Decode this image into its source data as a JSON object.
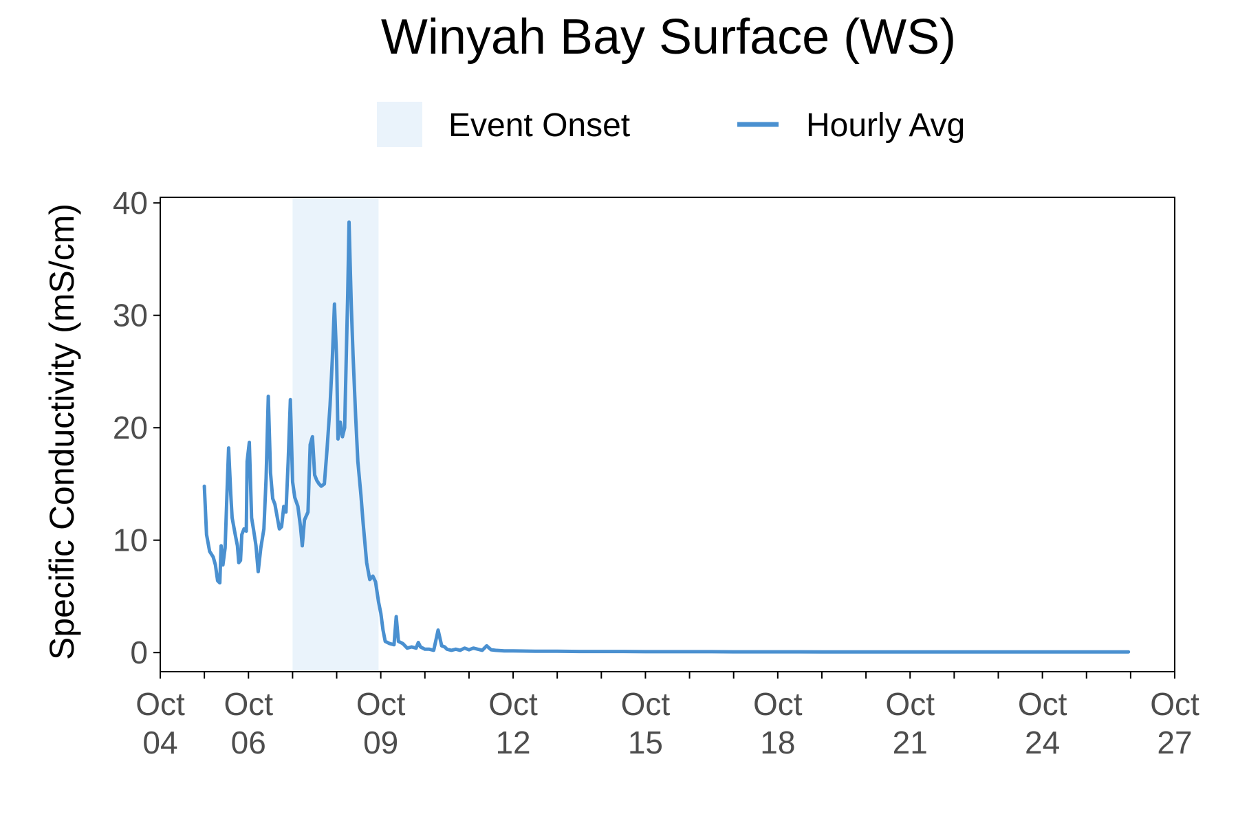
{
  "colors": {
    "line": "#4a90d0",
    "event_fill": "#eaf3fb",
    "axis": "#000000",
    "tick_text": "#4d4d4d"
  },
  "chart_data": {
    "type": "line",
    "title": "Winyah Bay Surface (WS)",
    "xlabel": "",
    "ylabel": "Specific Conductivity (mS/cm)",
    "x_axis": "date (October, day of month)",
    "xlim": [
      "Oct 04",
      "Oct 27"
    ],
    "ylim": [
      -1.7,
      40.5
    ],
    "y_ticks": [
      0,
      10,
      20,
      30,
      40
    ],
    "x_ticks": [
      {
        "day": 4,
        "label": "Oct\n04"
      },
      {
        "day": 6,
        "label": "Oct\n06"
      },
      {
        "day": 9,
        "label": "Oct\n09"
      },
      {
        "day": 12,
        "label": "Oct\n12"
      },
      {
        "day": 15,
        "label": "Oct\n15"
      },
      {
        "day": 18,
        "label": "Oct\n18"
      },
      {
        "day": 21,
        "label": "Oct\n21"
      },
      {
        "day": 24,
        "label": "Oct\n24"
      },
      {
        "day": 27,
        "label": "Oct\n27"
      }
    ],
    "minor_tick_days": [
      5,
      7,
      8,
      10,
      11,
      13,
      14,
      16,
      17,
      19,
      20,
      22,
      23,
      25,
      26
    ],
    "legend": {
      "placement": "top",
      "entries": [
        {
          "label": "Event Onset",
          "kind": "fill"
        },
        {
          "label": "Hourly Avg",
          "kind": "line"
        }
      ]
    },
    "event_onset": {
      "start_day": 7.0,
      "end_day": 8.95
    },
    "series": [
      {
        "name": "Hourly Avg",
        "points": [
          [
            5.0,
            14.8
          ],
          [
            5.05,
            10.5
          ],
          [
            5.12,
            9.0
          ],
          [
            5.2,
            8.5
          ],
          [
            5.25,
            7.8
          ],
          [
            5.3,
            6.4
          ],
          [
            5.35,
            6.2
          ],
          [
            5.38,
            9.5
          ],
          [
            5.42,
            7.8
          ],
          [
            5.47,
            9.3
          ],
          [
            5.52,
            15.0
          ],
          [
            5.55,
            18.2
          ],
          [
            5.6,
            14.0
          ],
          [
            5.63,
            12.0
          ],
          [
            5.7,
            10.5
          ],
          [
            5.75,
            9.5
          ],
          [
            5.78,
            8.0
          ],
          [
            5.82,
            8.2
          ],
          [
            5.85,
            10.5
          ],
          [
            5.9,
            11.0
          ],
          [
            5.95,
            10.8
          ],
          [
            5.97,
            17.0
          ],
          [
            6.02,
            18.7
          ],
          [
            6.07,
            12.0
          ],
          [
            6.12,
            10.8
          ],
          [
            6.17,
            9.5
          ],
          [
            6.22,
            7.2
          ],
          [
            6.28,
            9.3
          ],
          [
            6.35,
            11.0
          ],
          [
            6.4,
            15.5
          ],
          [
            6.45,
            22.8
          ],
          [
            6.5,
            16.0
          ],
          [
            6.55,
            13.7
          ],
          [
            6.6,
            13.2
          ],
          [
            6.7,
            11.0
          ],
          [
            6.75,
            11.2
          ],
          [
            6.8,
            13.0
          ],
          [
            6.85,
            12.5
          ],
          [
            6.9,
            17.0
          ],
          [
            6.95,
            22.5
          ],
          [
            7.0,
            15.2
          ],
          [
            7.05,
            13.8
          ],
          [
            7.12,
            13.0
          ],
          [
            7.18,
            11.2
          ],
          [
            7.22,
            9.5
          ],
          [
            7.27,
            11.8
          ],
          [
            7.35,
            12.5
          ],
          [
            7.4,
            18.5
          ],
          [
            7.45,
            19.2
          ],
          [
            7.5,
            15.8
          ],
          [
            7.55,
            15.3
          ],
          [
            7.6,
            15.0
          ],
          [
            7.65,
            14.8
          ],
          [
            7.72,
            15.0
          ],
          [
            7.78,
            18.0
          ],
          [
            7.85,
            22.0
          ],
          [
            7.9,
            26.0
          ],
          [
            7.95,
            31.0
          ],
          [
            8.0,
            26.0
          ],
          [
            8.03,
            19.0
          ],
          [
            8.08,
            20.5
          ],
          [
            8.13,
            19.2
          ],
          [
            8.18,
            20.0
          ],
          [
            8.25,
            32.0
          ],
          [
            8.28,
            38.3
          ],
          [
            8.33,
            31.0
          ],
          [
            8.37,
            26.5
          ],
          [
            8.43,
            21.0
          ],
          [
            8.48,
            17.0
          ],
          [
            8.55,
            14.0
          ],
          [
            8.6,
            11.5
          ],
          [
            8.68,
            8.0
          ],
          [
            8.75,
            6.5
          ],
          [
            8.82,
            6.8
          ],
          [
            8.88,
            6.3
          ],
          [
            8.95,
            4.5
          ],
          [
            9.0,
            3.5
          ],
          [
            9.05,
            2.0
          ],
          [
            9.1,
            1.0
          ],
          [
            9.2,
            0.8
          ],
          [
            9.3,
            0.7
          ],
          [
            9.35,
            3.2
          ],
          [
            9.4,
            1.0
          ],
          [
            9.5,
            0.8
          ],
          [
            9.6,
            0.4
          ],
          [
            9.7,
            0.5
          ],
          [
            9.8,
            0.4
          ],
          [
            9.85,
            0.9
          ],
          [
            9.9,
            0.5
          ],
          [
            10.0,
            0.3
          ],
          [
            10.1,
            0.3
          ],
          [
            10.2,
            0.2
          ],
          [
            10.3,
            2.0
          ],
          [
            10.38,
            0.6
          ],
          [
            10.45,
            0.5
          ],
          [
            10.5,
            0.3
          ],
          [
            10.6,
            0.2
          ],
          [
            10.7,
            0.3
          ],
          [
            10.8,
            0.2
          ],
          [
            10.9,
            0.4
          ],
          [
            11.0,
            0.25
          ],
          [
            11.1,
            0.4
          ],
          [
            11.2,
            0.3
          ],
          [
            11.3,
            0.2
          ],
          [
            11.4,
            0.6
          ],
          [
            11.5,
            0.25
          ],
          [
            11.6,
            0.2
          ],
          [
            11.8,
            0.15
          ],
          [
            12.0,
            0.15
          ],
          [
            12.5,
            0.12
          ],
          [
            13.0,
            0.12
          ],
          [
            13.5,
            0.1
          ],
          [
            14.0,
            0.1
          ],
          [
            14.5,
            0.1
          ],
          [
            15.0,
            0.08
          ],
          [
            15.5,
            0.08
          ],
          [
            16.0,
            0.08
          ],
          [
            16.5,
            0.08
          ],
          [
            17.0,
            0.07
          ],
          [
            17.5,
            0.07
          ],
          [
            18.0,
            0.07
          ],
          [
            18.5,
            0.07
          ],
          [
            19.0,
            0.06
          ],
          [
            19.5,
            0.06
          ],
          [
            20.0,
            0.06
          ],
          [
            20.5,
            0.06
          ],
          [
            21.0,
            0.06
          ],
          [
            21.5,
            0.06
          ],
          [
            22.0,
            0.06
          ],
          [
            22.5,
            0.06
          ],
          [
            23.0,
            0.06
          ],
          [
            23.5,
            0.06
          ],
          [
            24.0,
            0.06
          ],
          [
            24.5,
            0.06
          ],
          [
            25.0,
            0.06
          ],
          [
            25.5,
            0.06
          ],
          [
            25.95,
            0.06
          ]
        ]
      }
    ]
  }
}
